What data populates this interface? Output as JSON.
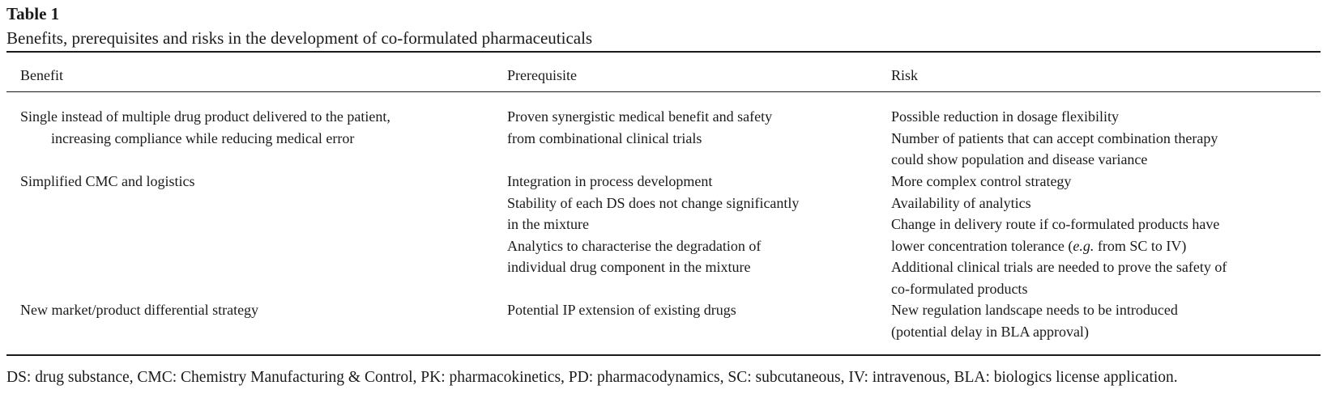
{
  "table": {
    "label": "Table 1",
    "caption": "Benefits, prerequisites and risks in the development of co-formulated pharmaceuticals",
    "headers": [
      "Benefit",
      "Prerequisite",
      "Risk"
    ],
    "rows": [
      {
        "benefit": [
          "Single instead of multiple drug product delivered to the patient,",
          "increasing compliance while reducing medical error"
        ],
        "prerequisite": [
          "Proven synergistic medical benefit and safety",
          "from combinational clinical trials"
        ],
        "risk": [
          "Possible reduction in dosage flexibility",
          "Number of patients that can accept combination therapy",
          "could show population and disease variance"
        ]
      },
      {
        "benefit": [
          "Simplified CMC and logistics"
        ],
        "prerequisite": [
          "Integration in process development",
          "Stability of each DS does not change significantly",
          "in the mixture",
          "Analytics to characterise the degradation of",
          "individual drug component in the mixture"
        ],
        "risk": [
          "More complex control strategy",
          "Availability of analytics",
          "Change in delivery route if co-formulated products have",
          "lower concentration tolerance (",
          "e.g.",
          " from SC to IV)",
          "Additional clinical trials are needed to prove the safety of",
          "co-formulated products"
        ]
      },
      {
        "benefit": [
          "New market/product differential strategy"
        ],
        "prerequisite": [
          "Potential IP extension of existing drugs"
        ],
        "risk": [
          "New regulation landscape needs to be introduced",
          "(potential delay in BLA approval)"
        ]
      }
    ],
    "footnote": "DS: drug substance, CMC: Chemistry Manufacturing & Control, PK: pharmacokinetics, PD: pharmacodynamics, SC: subcutaneous, IV: intravenous, BLA: biologics license application."
  }
}
